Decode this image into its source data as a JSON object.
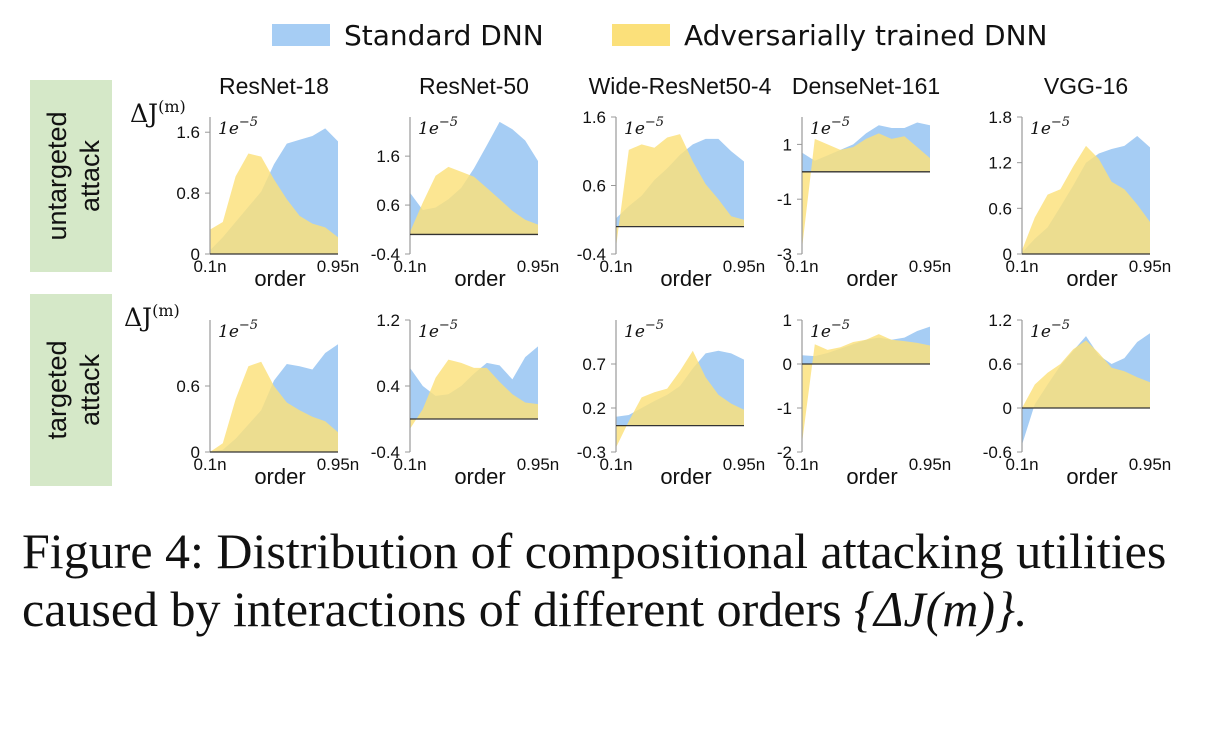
{
  "legend": {
    "standard": {
      "label": "Standard DNN",
      "color": "#a6cdf4"
    },
    "adversarial": {
      "label": "Adversarially trained DNN",
      "color": "#fbe07a"
    }
  },
  "row_labels": [
    {
      "line1": "untargeted",
      "line2": "attack"
    },
    {
      "line1": "targeted",
      "line2": "attack"
    }
  ],
  "row_label_bg": "#d5e8c8",
  "y_unit_label": "ΔJ",
  "y_unit_sup": "(m)",
  "scale_label": "1e",
  "scale_exp": "−5",
  "x_axis": {
    "title": "order",
    "start_label": "0.1n",
    "end_label": "0.95n"
  },
  "caption": {
    "text": "Figure 4: Distribution of compositional attacking utilities caused by interactions of different orders",
    "math": "{ΔJ(m)}."
  },
  "chart_data": [
    {
      "type": "area",
      "title": "ResNet-18",
      "row": "untargeted attack",
      "ylim": [
        0,
        1.8
      ],
      "yticks": [
        "0",
        "0.8",
        "1.6"
      ],
      "x": [
        "0.1n",
        "",
        "",
        "",
        "",
        "",
        "",
        "",
        "",
        "",
        "0.95n"
      ],
      "series": [
        {
          "name": "Standard DNN",
          "values": [
            0.05,
            0.22,
            0.42,
            0.62,
            0.82,
            1.18,
            1.45,
            1.5,
            1.55,
            1.65,
            1.48
          ]
        },
        {
          "name": "Adversarially trained DNN",
          "values": [
            0.32,
            0.42,
            1.02,
            1.32,
            1.28,
            0.98,
            0.72,
            0.5,
            0.4,
            0.35,
            0.22
          ]
        }
      ]
    },
    {
      "type": "area",
      "title": "ResNet-50",
      "row": "untargeted attack",
      "ylim": [
        -0.4,
        2.4
      ],
      "yticks": [
        "-0.4",
        "0.6",
        "1.6"
      ],
      "x": [
        "0.1n",
        "",
        "",
        "",
        "",
        "",
        "",
        "",
        "",
        "",
        "0.95n"
      ],
      "series": [
        {
          "name": "Standard DNN",
          "values": [
            0.85,
            0.5,
            0.55,
            0.72,
            0.95,
            1.35,
            1.82,
            2.3,
            2.15,
            1.92,
            1.5
          ]
        },
        {
          "name": "Adversarially trained DNN",
          "values": [
            0.05,
            0.65,
            1.2,
            1.38,
            1.28,
            1.18,
            0.95,
            0.72,
            0.48,
            0.3,
            0.2
          ]
        }
      ]
    },
    {
      "type": "area",
      "title": "Wide-ResNet50-4",
      "row": "untargeted attack",
      "ylim": [
        -0.4,
        1.6
      ],
      "yticks": [
        "-0.4",
        "0.6",
        "1.6"
      ],
      "x": [
        "0.1n",
        "",
        "",
        "",
        "",
        "",
        "",
        "",
        "",
        "",
        "0.95n"
      ],
      "series": [
        {
          "name": "Standard DNN",
          "values": [
            0.12,
            0.3,
            0.45,
            0.68,
            0.85,
            1.05,
            1.2,
            1.28,
            1.28,
            1.1,
            0.95
          ]
        },
        {
          "name": "Adversarially trained DNN",
          "values": [
            -0.3,
            1.12,
            1.2,
            1.15,
            1.3,
            1.35,
            0.95,
            0.62,
            0.4,
            0.15,
            0.1
          ]
        }
      ]
    },
    {
      "type": "area",
      "title": "DenseNet-161",
      "row": "untargeted attack",
      "ylim": [
        -3,
        2
      ],
      "yticks": [
        "-3",
        "-1",
        "1"
      ],
      "x": [
        "0.1n",
        "",
        "",
        "",
        "",
        "",
        "",
        "",
        "",
        "",
        "0.95n"
      ],
      "series": [
        {
          "name": "Standard DNN",
          "values": [
            0.7,
            0.4,
            0.6,
            0.8,
            1.0,
            1.4,
            1.7,
            1.6,
            1.6,
            1.8,
            1.7
          ]
        },
        {
          "name": "Adversarially trained DNN",
          "values": [
            -2.8,
            1.2,
            1.0,
            0.8,
            0.9,
            1.2,
            1.4,
            1.2,
            1.3,
            0.9,
            0.5
          ]
        }
      ]
    },
    {
      "type": "area",
      "title": "VGG-16",
      "row": "untargeted attack",
      "ylim": [
        0,
        1.8
      ],
      "yticks": [
        "0",
        "0.6",
        "1.2",
        "1.8"
      ],
      "x": [
        "0.1n",
        "",
        "",
        "",
        "",
        "",
        "",
        "",
        "",
        "",
        "0.95n"
      ],
      "series": [
        {
          "name": "Standard DNN",
          "values": [
            0.02,
            0.2,
            0.35,
            0.62,
            0.9,
            1.2,
            1.32,
            1.38,
            1.42,
            1.55,
            1.4
          ]
        },
        {
          "name": "Adversarially trained DNN",
          "values": [
            0.05,
            0.48,
            0.78,
            0.85,
            1.15,
            1.42,
            1.25,
            0.95,
            0.85,
            0.65,
            0.42
          ]
        }
      ]
    },
    {
      "type": "area",
      "title": "",
      "row": "targeted attack",
      "ylim": [
        0,
        1.2
      ],
      "yticks": [
        "0",
        "0.6"
      ],
      "x": [
        "0.1n",
        "",
        "",
        "",
        "",
        "",
        "",
        "",
        "",
        "",
        "0.95n"
      ],
      "series": [
        {
          "name": "Standard DNN",
          "values": [
            0.0,
            0.02,
            0.12,
            0.25,
            0.38,
            0.65,
            0.8,
            0.78,
            0.75,
            0.9,
            0.98
          ]
        },
        {
          "name": "Adversarially trained DNN",
          "values": [
            0.0,
            0.08,
            0.48,
            0.78,
            0.82,
            0.6,
            0.45,
            0.38,
            0.32,
            0.28,
            0.18
          ]
        }
      ]
    },
    {
      "type": "area",
      "title": "",
      "row": "targeted attack",
      "ylim": [
        -0.4,
        1.2
      ],
      "yticks": [
        "-0.4",
        "0.4",
        "1.2"
      ],
      "x": [
        "0.1n",
        "",
        "",
        "",
        "",
        "",
        "",
        "",
        "",
        "",
        "0.95n"
      ],
      "series": [
        {
          "name": "Standard DNN",
          "values": [
            0.62,
            0.4,
            0.28,
            0.3,
            0.4,
            0.55,
            0.68,
            0.65,
            0.48,
            0.75,
            0.88
          ]
        },
        {
          "name": "Adversarially trained DNN",
          "values": [
            -0.12,
            0.12,
            0.5,
            0.72,
            0.68,
            0.62,
            0.62,
            0.45,
            0.3,
            0.2,
            0.18
          ]
        }
      ]
    },
    {
      "type": "area",
      "title": "",
      "row": "targeted attack",
      "ylim": [
        -0.3,
        1.2
      ],
      "yticks": [
        "-0.3",
        "0.2",
        "0.7"
      ],
      "x": [
        "0.1n",
        "",
        "",
        "",
        "",
        "",
        "",
        "",
        "",
        "",
        "0.95n"
      ],
      "series": [
        {
          "name": "Standard DNN",
          "values": [
            0.1,
            0.12,
            0.2,
            0.28,
            0.35,
            0.45,
            0.65,
            0.82,
            0.85,
            0.82,
            0.75
          ]
        },
        {
          "name": "Adversarially trained DNN",
          "values": [
            -0.25,
            0.05,
            0.32,
            0.38,
            0.42,
            0.62,
            0.85,
            0.55,
            0.35,
            0.25,
            0.18
          ]
        }
      ]
    },
    {
      "type": "area",
      "title": "",
      "row": "targeted attack",
      "ylim": [
        -2,
        1
      ],
      "yticks": [
        "-2",
        "-1",
        "0",
        "1"
      ],
      "x": [
        "0.1n",
        "",
        "",
        "",
        "",
        "",
        "",
        "",
        "",
        "",
        "0.95n"
      ],
      "series": [
        {
          "name": "Standard DNN",
          "values": [
            0.2,
            0.18,
            0.25,
            0.35,
            0.45,
            0.55,
            0.6,
            0.55,
            0.6,
            0.75,
            0.85
          ]
        },
        {
          "name": "Adversarially trained DNN",
          "values": [
            -1.8,
            0.45,
            0.32,
            0.38,
            0.5,
            0.55,
            0.68,
            0.55,
            0.52,
            0.48,
            0.42
          ]
        }
      ]
    },
    {
      "type": "area",
      "title": "",
      "row": "targeted attack",
      "ylim": [
        -0.6,
        1.2
      ],
      "yticks": [
        "-0.6",
        "0",
        "0.6",
        "1.2"
      ],
      "x": [
        "0.1n",
        "",
        "",
        "",
        "",
        "",
        "",
        "",
        "",
        "",
        "0.95n"
      ],
      "series": [
        {
          "name": "Standard DNN",
          "values": [
            -0.5,
            0.05,
            0.32,
            0.58,
            0.78,
            0.98,
            0.72,
            0.6,
            0.68,
            0.9,
            1.02
          ]
        },
        {
          "name": "Adversarially trained DNN",
          "values": [
            0.0,
            0.32,
            0.48,
            0.6,
            0.8,
            0.92,
            0.75,
            0.55,
            0.5,
            0.42,
            0.35
          ]
        }
      ]
    }
  ]
}
